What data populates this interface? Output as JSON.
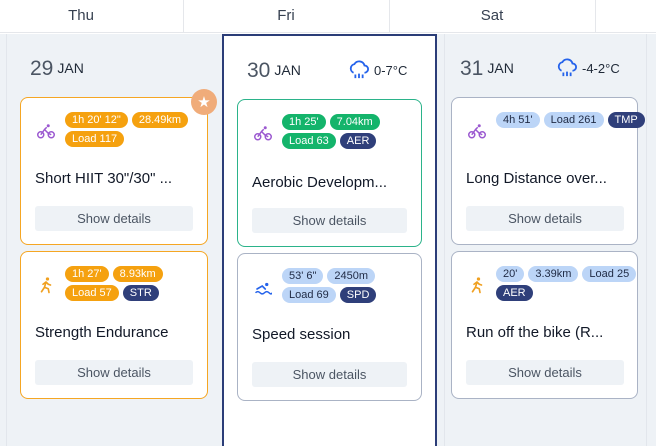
{
  "header": {
    "days": [
      "Thu",
      "Fri",
      "Sat"
    ]
  },
  "colors": {
    "today_border": "#2b3d78",
    "orange": "#f5a10f",
    "green": "#14b46b",
    "light_blue": "#bcd5f7",
    "navy": "#2f3f7a",
    "bike": "#9b59d0",
    "run": "#f0a020",
    "swim": "#2563eb"
  },
  "columns": [
    {
      "day_num": "29",
      "month": "JAN",
      "cards": [
        {
          "sport": "bike-icon",
          "badges": [
            "1h 20' 12\"",
            "28.49km",
            "Load 117"
          ],
          "title": "Short HIIT 30\"/30\" ...",
          "button": "Show details",
          "starred": true
        },
        {
          "sport": "run-icon",
          "badges": [
            "1h 27'",
            "8.93km",
            "Load 57",
            "STR"
          ],
          "title": "Strength Endurance",
          "button": "Show details"
        }
      ]
    },
    {
      "day_num": "30",
      "month": "JAN",
      "weather": "0-7°C",
      "cards": [
        {
          "sport": "bike-icon",
          "badges": [
            "1h 25'",
            "7.04km",
            "Load 63",
            "AER"
          ],
          "title": "Aerobic Developm...",
          "button": "Show details"
        },
        {
          "sport": "swim-icon",
          "badges": [
            "53' 6\"",
            "2450m",
            "Load 69",
            "SPD"
          ],
          "title": "Speed session",
          "button": "Show details"
        }
      ]
    },
    {
      "day_num": "31",
      "month": "JAN",
      "weather": "-4-2°C",
      "cards": [
        {
          "sport": "bike-icon",
          "badges": [
            "4h 51'",
            "Load 261",
            "TMP"
          ],
          "title": "Long Distance over...",
          "button": "Show details"
        },
        {
          "sport": "run-icon",
          "badges": [
            "20'",
            "3.39km",
            "Load 25",
            "AER"
          ],
          "title": "Run off the bike (R...",
          "button": "Show details"
        }
      ]
    }
  ]
}
